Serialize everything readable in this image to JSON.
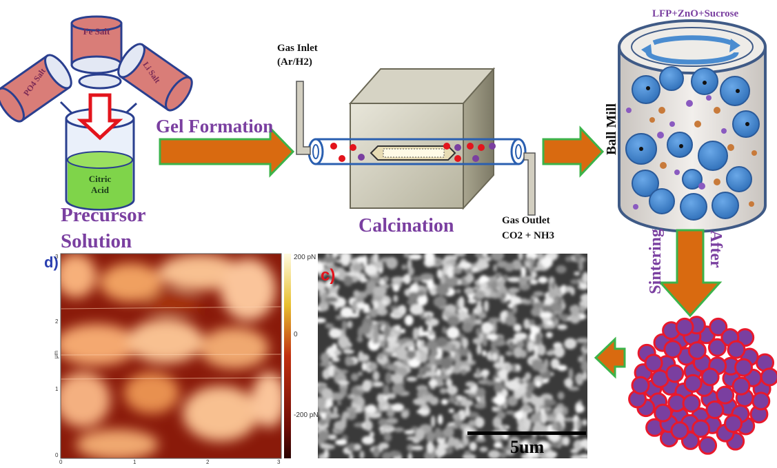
{
  "precursor": {
    "salts": [
      "Fe Salt",
      "PO4 Salt",
      "Li Salt"
    ],
    "beaker_label": "Citric Acid",
    "title_line1": "Precursor",
    "title_line2": "Solution"
  },
  "step_gel": "Gel Formation",
  "furnace": {
    "gas_inlet_line1": "Gas Inlet",
    "gas_inlet_line2": "(Ar/H2)",
    "gas_outlet_line1": "Gas Outlet",
    "gas_outlet_line2": "CO2 + NH3",
    "title": "Calcination"
  },
  "ball_mill": {
    "mixture": "LFP+ZnO+Sucrose",
    "label": "Ball Mill"
  },
  "sintering": {
    "label_left": "Sintering",
    "label_right": "After"
  },
  "panel_c": {
    "tag": "c)",
    "scale_bar": "5um"
  },
  "panel_d": {
    "tag": "d)",
    "colorbar_ticks": [
      "200 pN",
      "0",
      "-200 pN"
    ],
    "x_ticks": [
      "0",
      "1",
      "2",
      "3"
    ],
    "y_ticks": [
      "3",
      "2",
      "1",
      "0"
    ],
    "y_unit": "μm"
  },
  "colors": {
    "purple_text": "#7a3fa0",
    "arrow_orange": "#d96a10",
    "arrow_outline": "#3cb34a",
    "mill_blue": "#4a8cd0",
    "particle_core": "#7a3fa0",
    "particle_shell": "#e8192c"
  }
}
